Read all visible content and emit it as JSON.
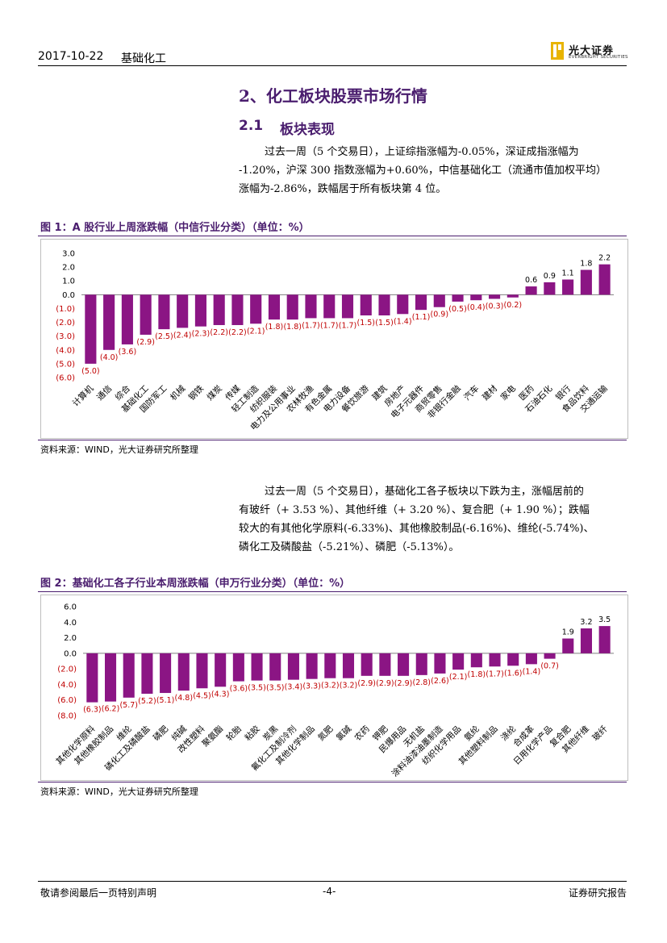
{
  "header": {
    "date": "2017-10-22",
    "sector": "基础化工",
    "logo_cn": "光大证券",
    "logo_en": "EVERBRIGHT SECURITIES"
  },
  "section": {
    "title": "2、化工板块股票市场行情",
    "sub_num": "2.1",
    "sub_title": "板块表现"
  },
  "para1": [
    "过去一周（5 个交易日），上证综指涨幅为-0.05%，深证成指涨幅为",
    "-1.20%，沪深 300 指数涨幅为+0.60%，中信基础化工（流通市值加权平均）",
    "涨幅为-2.86%，跌幅居于所有板块第 4 位。"
  ],
  "para2": [
    "过去一周（5 个交易日），基础化工各子板块以下跌为主，涨幅居前的",
    "有玻纤（+ 3.53 %）、其他纤维（+ 3.20 %）、复合肥（+ 1.90 %）；跌幅",
    "较大的有其他化学原料(-6.33%)、其他橡胶制品(-6.16%)、维纶(-5.74%)、",
    "磷化工及磷酸盐（-5.21%）、磷肥（-5.13%）。"
  ],
  "fig1": {
    "title": "图 1：A 股行业上周涨跌幅（中信行业分类）（单位：%）",
    "source": "资料来源：WIND，光大证券研究所整理"
  },
  "fig2": {
    "title": "图 2：基础化工各子行业本周涨跌幅（申万行业分类）（单位：%）",
    "source": "资料来源：WIND，光大证券研究所整理"
  },
  "colors": {
    "bar": "#8b1584",
    "neg_label": "#c00000",
    "pos_label": "#000000"
  },
  "chart_data": [
    {
      "type": "bar",
      "title": "A 股行业上周涨跌幅（中信行业分类）（单位：%）",
      "categories": [
        "计算机",
        "通信",
        "综合",
        "基础化工",
        "国防军工",
        "机械",
        "钢铁",
        "煤炭",
        "传媒",
        "轻工制造",
        "纺织服装",
        "电力及公用事业",
        "农林牧渔",
        "有色金属",
        "电力设备",
        "餐饮旅游",
        "建筑",
        "房地产",
        "电子元器件",
        "商贸零售",
        "非银行金融",
        "汽车",
        "建材",
        "家电",
        "医药",
        "石油石化",
        "银行",
        "食品饮料",
        "交通运输"
      ],
      "values": [
        -5.0,
        -4.0,
        -3.6,
        -2.9,
        -2.5,
        -2.4,
        -2.3,
        -2.2,
        -2.2,
        -2.1,
        -1.8,
        -1.8,
        -1.7,
        -1.7,
        -1.7,
        -1.5,
        -1.5,
        -1.4,
        -1.1,
        -0.9,
        -0.5,
        -0.4,
        -0.3,
        -0.2,
        0.6,
        0.9,
        1.1,
        1.8,
        2.2
      ],
      "value_labels": [
        "(5.0)",
        "(4.0)",
        "(3.6)",
        "(2.9)",
        "(2.5)",
        "(2.4)",
        "(2.3)",
        "(2.2)",
        "(2.2)",
        "(2.1)",
        "(1.8)",
        "(1.8)",
        "(1.7)",
        "(1.7)",
        "(1.7)",
        "(1.5)",
        "(1.5)",
        "(1.4)",
        "(1.1)",
        "(0.9)",
        "(0.5)",
        "(0.4)",
        "(0.3)",
        "(0.2)",
        "0.6",
        "0.9",
        "1.1",
        "1.8",
        "2.2"
      ],
      "yticks": [
        "3.0",
        "2.0",
        "1.0",
        "0.0",
        "(1.0)",
        "(2.0)",
        "(3.0)",
        "(4.0)",
        "(5.0)",
        "(6.0)"
      ],
      "ylim": [
        -6,
        3
      ]
    },
    {
      "type": "bar",
      "title": "基础化工各子行业本周涨跌幅（申万行业分类）（单位：%）",
      "categories": [
        "其他化学原料",
        "其他橡胶制品",
        "维纶",
        "磷化工及磷酸盐",
        "磷肥",
        "纯碱",
        "改性塑料",
        "聚氨酯",
        "轮胎",
        "粘胶",
        "炭黑",
        "氟化工及制冷剂",
        "其他化学制品",
        "氮肥",
        "氯碱",
        "农药",
        "钾肥",
        "民爆用品",
        "无机盐",
        "涂料油漆油墨制造",
        "纺织化学用品",
        "氨纶",
        "其他塑料制品",
        "涤纶",
        "合成革",
        "日用化学产品",
        "复合肥",
        "其他纤维",
        "玻纤"
      ],
      "values": [
        -6.3,
        -6.2,
        -5.7,
        -5.2,
        -5.1,
        -4.8,
        -4.5,
        -4.3,
        -3.6,
        -3.5,
        -3.5,
        -3.4,
        -3.3,
        -3.2,
        -3.2,
        -2.9,
        -2.9,
        -2.9,
        -2.8,
        -2.6,
        -2.1,
        -1.8,
        -1.7,
        -1.6,
        -1.4,
        -0.7,
        1.9,
        3.2,
        3.5
      ],
      "value_labels": [
        "(6.3)",
        "(6.2)",
        "(5.7)",
        "(5.2)",
        "(5.1)",
        "(4.8)",
        "(4.5)",
        "(4.3)",
        "(3.6)",
        "(3.5)",
        "(3.5)",
        "(3.4)",
        "(3.3)",
        "(3.2)",
        "(3.2)",
        "(2.9)",
        "(2.9)",
        "(2.9)",
        "(2.8)",
        "(2.6)",
        "(2.1)",
        "(1.8)",
        "(1.7)",
        "(1.6)",
        "(1.4)",
        "(0.7)",
        "1.9",
        "3.2",
        "3.5"
      ],
      "yticks": [
        "6.0",
        "4.0",
        "2.0",
        "0.0",
        "(2.0)",
        "(4.0)",
        "(6.0)",
        "(8.0)"
      ],
      "ylim": [
        -8,
        6
      ]
    }
  ],
  "footer": {
    "left": "敬请参阅最后一页特别声明",
    "page": "-4-",
    "right": "证券研究报告"
  }
}
